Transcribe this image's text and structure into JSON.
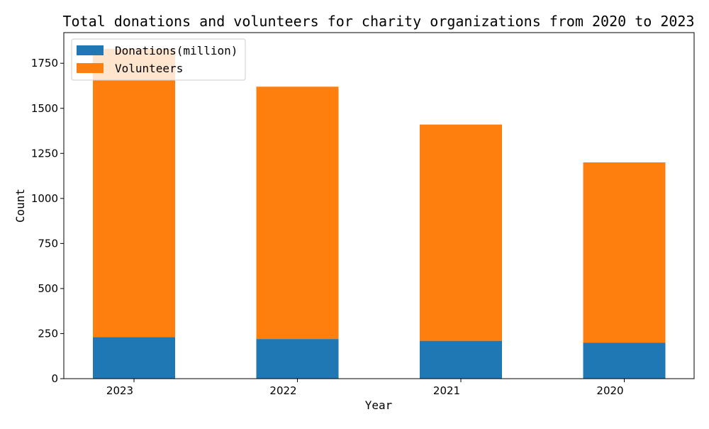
{
  "chart_data": {
    "type": "bar",
    "stacked": true,
    "title": "Total donations and volunteers for charity organizations from 2020 to 2023",
    "xlabel": "Year",
    "ylabel": "Count",
    "categories": [
      "2023",
      "2022",
      "2021",
      "2020"
    ],
    "series": [
      {
        "name": "Donations(million)",
        "values": [
          230,
          220,
          210,
          200
        ],
        "color": "#1f77b4"
      },
      {
        "name": "Volunteers",
        "values": [
          1600,
          1400,
          1200,
          1000
        ],
        "color": "#ff7f0e"
      }
    ],
    "ylim": [
      0,
      1920
    ],
    "yticks": [
      0,
      250,
      500,
      750,
      1000,
      1250,
      1500,
      1750
    ],
    "grid": false,
    "legend_position": "top-left"
  }
}
